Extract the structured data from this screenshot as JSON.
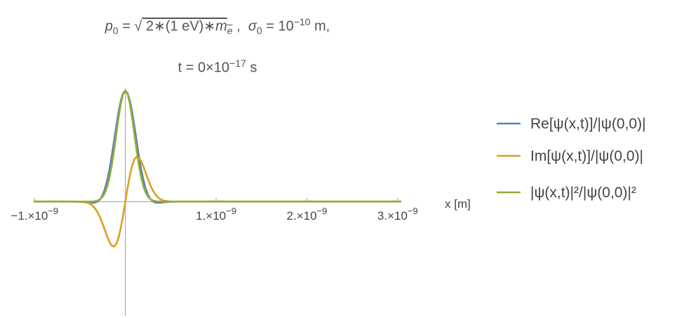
{
  "chart_data": {
    "type": "line",
    "title": [
      [
        {
          "text": "p",
          "italic": true
        },
        {
          "text": "0",
          "shift": "sub"
        },
        {
          "text": " = "
        },
        {
          "text": "√"
        },
        {
          "text": " 2∗(1 eV)∗",
          "overline": true
        },
        {
          "text": "m",
          "italic": true,
          "overline": true
        },
        {
          "text": "e",
          "italic": true,
          "shift": "sub",
          "overline": true
        },
        {
          "text": " ,  "
        },
        {
          "text": "σ",
          "italic": true
        },
        {
          "text": "0",
          "shift": "sub"
        },
        {
          "text": " = 10"
        },
        {
          "text": "−10",
          "shift": "sup"
        },
        {
          "text": " m,"
        }
      ],
      [
        {
          "text": "t = 0×10"
        },
        {
          "text": "−17",
          "shift": "sup"
        },
        {
          "text": " s"
        }
      ]
    ],
    "x_label": "x [m]",
    "x": [
      -1.01e-09,
      -8e-10,
      -6e-10,
      -5.75e-10,
      -5.5e-10,
      -5.25e-10,
      -5e-10,
      -4.75e-10,
      -4.5e-10,
      -4.25e-10,
      -4e-10,
      -3.75e-10,
      -3.5e-10,
      -3.25e-10,
      -3e-10,
      -2.75e-10,
      -2.5e-10,
      -2.25e-10,
      -2e-10,
      -1.75e-10,
      -1.5e-10,
      -1.25e-10,
      -1e-10,
      -7.5e-11,
      -5e-11,
      -2.5e-11,
      0,
      2.5e-11,
      5e-11,
      7.5e-11,
      1e-10,
      1.25e-10,
      1.5e-10,
      1.75e-10,
      2e-10,
      2.25e-10,
      2.5e-10,
      2.75e-10,
      3e-10,
      3.25e-10,
      3.5e-10,
      3.75e-10,
      4e-10,
      4.25e-10,
      4.5e-10,
      4.75e-10,
      5e-10,
      5.25e-10,
      5.5e-10,
      5.75e-10,
      6e-10,
      8e-10,
      1e-09,
      2e-09,
      3.04e-09
    ],
    "series": [
      {
        "name": "Re[ψ(x,t)]/|ψ(0,0)|",
        "color": "#5e81b5",
        "values": [
          0,
          0,
          -0.0001,
          -0.0003,
          -0.0005,
          -0.0009,
          -0.0016,
          -0.0027,
          -0.0042,
          -0.0062,
          -0.0084,
          -0.0102,
          -0.0103,
          -0.0067,
          0.0036,
          0.0244,
          0.06,
          0.1147,
          0.1912,
          0.2903,
          0.4097,
          0.5425,
          0.6788,
          0.8055,
          0.9088,
          0.9764,
          1,
          0.9764,
          0.9088,
          0.8055,
          0.6788,
          0.5425,
          0.4097,
          0.2903,
          0.1912,
          0.1147,
          0.06,
          0.0244,
          0.0036,
          -0.0067,
          -0.0103,
          -0.0102,
          -0.0084,
          -0.0062,
          -0.0042,
          -0.0027,
          -0.0016,
          -0.0009,
          -0.0005,
          -0.0003,
          -0.0001,
          0,
          0,
          0,
          0
        ]
      },
      {
        "name": "Im[ψ(x,t)]/|ψ(0,0)|",
        "color": "#e19c24",
        "values": [
          0,
          0,
          0,
          -0.0001,
          -0.0002,
          -0.0004,
          -0.001,
          -0.0023,
          -0.0047,
          -0.009,
          -0.0162,
          -0.0279,
          -0.0456,
          -0.071,
          -0.1053,
          -0.149,
          -0.2008,
          -0.2578,
          -0.3143,
          -0.3632,
          -0.396,
          -0.4043,
          -0.3818,
          -0.3256,
          -0.238,
          -0.1257,
          0,
          0.1257,
          0.238,
          0.3256,
          0.3818,
          0.4043,
          0.396,
          0.3632,
          0.3143,
          0.2578,
          0.2008,
          0.149,
          0.1053,
          0.071,
          0.0456,
          0.0279,
          0.0162,
          0.009,
          0.0047,
          0.0023,
          0.001,
          0.0004,
          0.0002,
          0.0001,
          0,
          0,
          0,
          0,
          0
        ]
      },
      {
        "name": "|ψ(x,t)|²/|ψ(0,0)|²",
        "color": "#8fb032",
        "values": [
          0,
          0,
          0,
          0,
          0,
          0,
          0,
          0,
          0,
          0.0001,
          0.0003,
          0.0009,
          0.0022,
          0.0051,
          0.0111,
          0.0228,
          0.0439,
          0.0796,
          0.1353,
          0.2163,
          0.3247,
          0.4578,
          0.6065,
          0.7548,
          0.8825,
          0.9692,
          1,
          0.9692,
          0.8825,
          0.7548,
          0.6065,
          0.4578,
          0.3247,
          0.2163,
          0.1353,
          0.0796,
          0.0439,
          0.0228,
          0.0111,
          0.0051,
          0.0022,
          0.0009,
          0.0003,
          0.0001,
          0,
          0,
          0,
          0,
          0,
          0,
          0,
          0,
          0,
          0,
          0
        ]
      }
    ],
    "xlim": [
      -1.01e-09,
      3.04e-09
    ],
    "ylim": [
      -1.03,
      1.02
    ],
    "xticks": [
      {
        "value": -1e-09,
        "label": "−1.×10",
        "exponent": "−9"
      },
      {
        "value": 1e-09,
        "label": "1.×10",
        "exponent": "−9"
      },
      {
        "value": 2e-09,
        "label": "2.×10",
        "exponent": "−9"
      },
      {
        "value": 3e-09,
        "label": "3.×10",
        "exponent": "−9"
      }
    ],
    "legend": "right"
  }
}
